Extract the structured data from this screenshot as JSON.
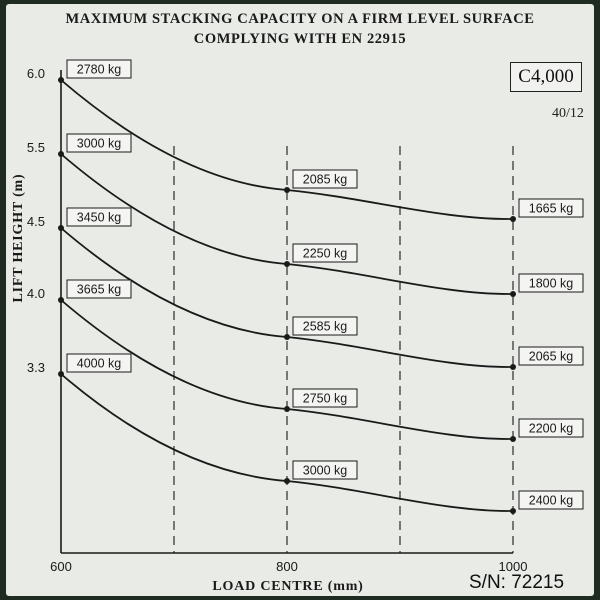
{
  "title": {
    "line1": "MAXIMUM STACKING CAPACITY ON A FIRM LEVEL SURFACE",
    "line2": "COMPLYING WITH EN 22915"
  },
  "capacity_box": "C4,000",
  "capacity_date": "40/12",
  "serial": "S/N: 72215",
  "colors": {
    "plate": "#e9ebe7",
    "ink": "#1a1a1a",
    "background": "#1f2a20"
  },
  "chart_data": {
    "type": "line",
    "xlabel": "LOAD CENTRE (mm)",
    "ylabel": "LIFT HEIGHT (m)",
    "x_ticks": [
      600,
      800,
      1000
    ],
    "y_ticks": [
      6.0,
      5.5,
      4.5,
      4.0,
      3.3
    ],
    "y_tick_labels": [
      "6.0",
      "5.5",
      "4.5",
      "4.0",
      "3.3"
    ],
    "dashed_x": [
      700,
      800,
      900,
      1000
    ],
    "grid": false,
    "series": [
      {
        "lift": 6.0,
        "points": [
          [
            600,
            2780
          ],
          [
            800,
            2085
          ],
          [
            1000,
            1665
          ]
        ],
        "labels": [
          "2780 kg",
          "2085 kg",
          "1665 kg"
        ]
      },
      {
        "lift": 5.5,
        "points": [
          [
            600,
            3000
          ],
          [
            800,
            2250
          ],
          [
            1000,
            1800
          ]
        ],
        "labels": [
          "3000 kg",
          "2250 kg",
          "1800 kg"
        ]
      },
      {
        "lift": 4.5,
        "points": [
          [
            600,
            3450
          ],
          [
            800,
            2585
          ],
          [
            1000,
            2065
          ]
        ],
        "labels": [
          "3450 kg",
          "2585 kg",
          "2065 kg"
        ]
      },
      {
        "lift": 4.0,
        "points": [
          [
            600,
            3665
          ],
          [
            800,
            2750
          ],
          [
            1000,
            2200
          ]
        ],
        "labels": [
          "3665 kg",
          "2750 kg",
          "2200 kg"
        ]
      },
      {
        "lift": 3.3,
        "points": [
          [
            600,
            4000
          ],
          [
            800,
            3000
          ],
          [
            1000,
            2400
          ]
        ],
        "labels": [
          "4000 kg",
          "3000 kg",
          "2400 kg"
        ]
      }
    ]
  }
}
